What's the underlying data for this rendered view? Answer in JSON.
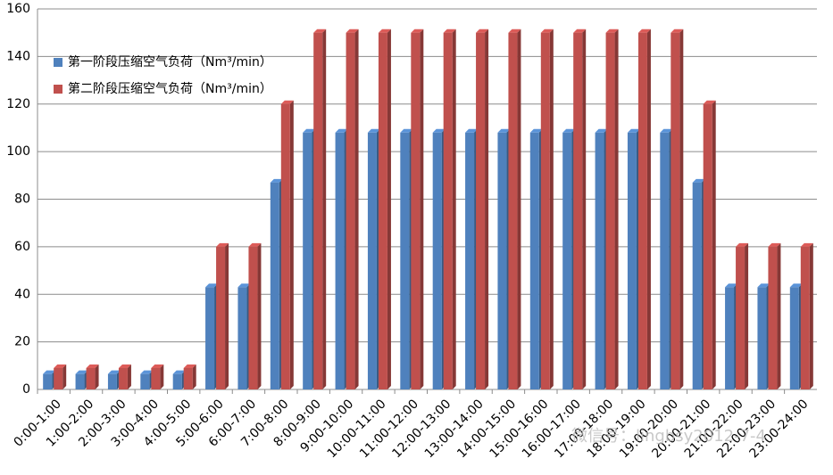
{
  "chart_data": {
    "type": "bar",
    "categories": [
      "0:00-1:00",
      "1:00-2:00",
      "2:00-3:00",
      "3:00-4:00",
      "4:00-5:00",
      "5:00-6:00",
      "6:00-7:00",
      "7:00-8:00",
      "8:00-9:00",
      "9:00-10:00",
      "10:00-11:00",
      "11:00-12:00",
      "12:00-13:00",
      "13:00-14:00",
      "14:00-15:00",
      "15:00-16:00",
      "16:00-17:00",
      "17:00-18:00",
      "18:00-19:00",
      "19:00-20:00",
      "20:00-21:00",
      "21:00-22:00",
      "22:00-23:00",
      "23:00-24:00"
    ],
    "series": [
      {
        "name": "第一阶段压缩空气负荷（Nm³/min）",
        "color": "#4f81bd",
        "values": [
          6.5,
          6.5,
          6.5,
          6.5,
          6.5,
          43,
          43,
          87,
          108,
          108,
          108,
          108,
          108,
          108,
          108,
          108,
          108,
          108,
          108,
          108,
          87,
          43,
          43,
          43
        ]
      },
      {
        "name": "第二阶段压缩空气负荷（Nm³/min）",
        "color": "#c0504d",
        "values": [
          9,
          9,
          9,
          9,
          9,
          60,
          60,
          120,
          150,
          150,
          150,
          150,
          150,
          150,
          150,
          150,
          150,
          150,
          150,
          150,
          120,
          60,
          60,
          60
        ]
      }
    ],
    "ylim": [
      0,
      160
    ],
    "yticks": [
      0,
      20,
      40,
      60,
      80,
      100,
      120,
      140,
      160
    ],
    "grid": true,
    "watermark": "微信号：lingbsy2012-7-4"
  }
}
